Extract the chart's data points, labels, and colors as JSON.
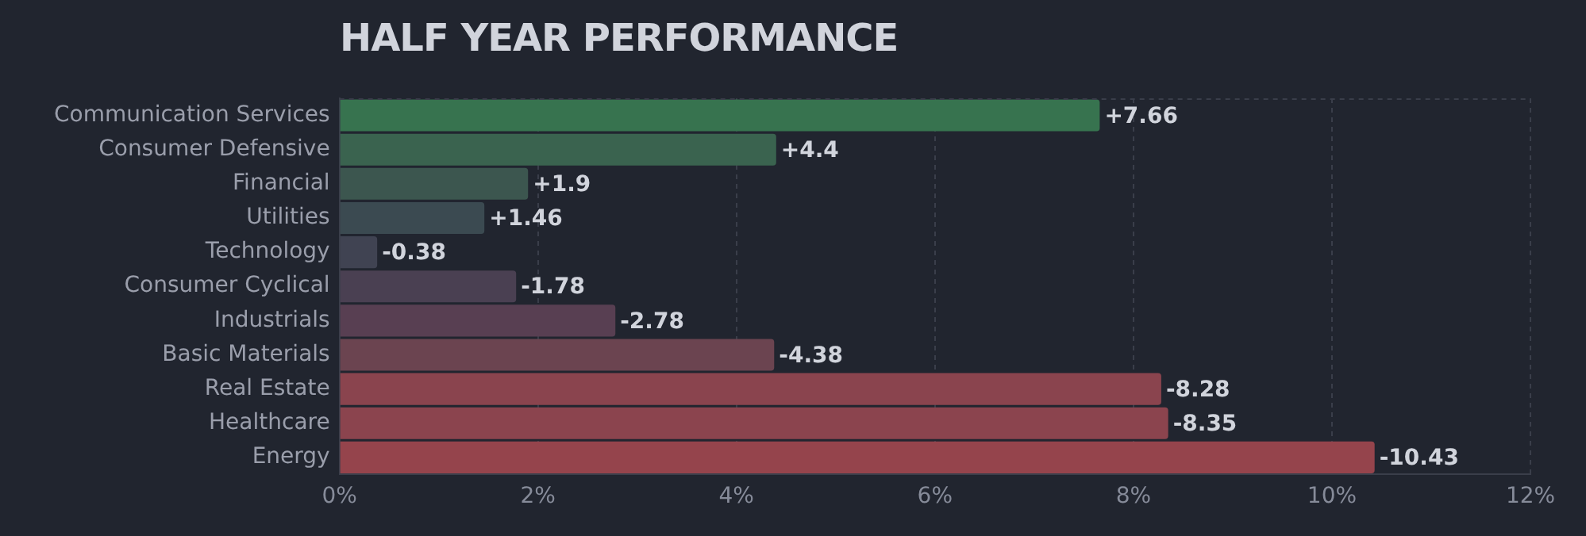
{
  "chart_data": {
    "type": "bar",
    "orientation": "horizontal",
    "title": "HALF YEAR PERFORMANCE",
    "categories": [
      "Communication Services",
      "Consumer Defensive",
      "Financial",
      "Utilities",
      "Technology",
      "Consumer Cyclical",
      "Industrials",
      "Basic Materials",
      "Real Estate",
      "Healthcare",
      "Energy"
    ],
    "values": [
      7.66,
      4.4,
      1.9,
      1.46,
      -0.38,
      -1.78,
      -2.78,
      -4.38,
      -8.28,
      -8.35,
      -10.43
    ],
    "base": [
      0,
      0,
      0,
      0,
      0.38,
      1.78,
      2.78,
      4.38,
      8.28,
      8.35,
      10.43
    ],
    "value_labels": [
      "+7.66",
      "+4.4",
      "+1.9",
      "+1.46",
      "-0.38",
      "-1.78",
      "-2.78",
      "-4.38",
      "-8.28",
      "-8.35",
      "-10.43"
    ],
    "colors": [
      "#37734f",
      "#3a634f",
      "#3c564f",
      "#3b4a51",
      "#404352",
      "#4a4052",
      "#583f52",
      "#6b4450",
      "#8a444e",
      "#8b444e",
      "#95444c"
    ],
    "xlim": [
      0,
      12
    ],
    "xticks": [
      {
        "value": 0,
        "label": "0%"
      },
      {
        "value": 2,
        "label": "2%"
      },
      {
        "value": 4,
        "label": "4%"
      },
      {
        "value": 6,
        "label": "6%"
      },
      {
        "value": 8,
        "label": "8%"
      },
      {
        "value": 10,
        "label": "10%"
      },
      {
        "value": 12,
        "label": "12%"
      }
    ],
    "grid": "x",
    "legend": false
  }
}
